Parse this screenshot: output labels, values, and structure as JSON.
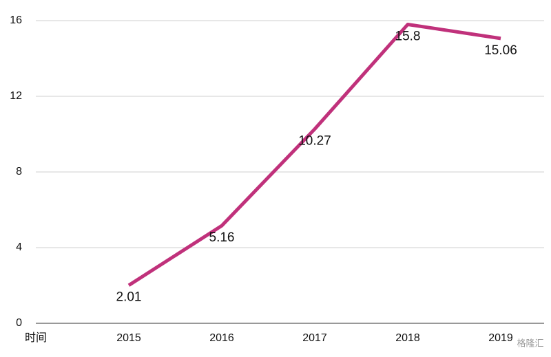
{
  "chart_data": {
    "type": "line",
    "x_label": "时间",
    "categories": [
      "2015",
      "2016",
      "2017",
      "2018",
      "2019"
    ],
    "series": [
      {
        "color": "#c0317b",
        "values": [
          2.01,
          5.16,
          10.27,
          15.8,
          15.06
        ]
      }
    ],
    "ylim": [
      0,
      16
    ],
    "yticks": [
      0,
      4,
      8,
      12,
      16
    ],
    "grid": true,
    "watermark": "格隆汇"
  }
}
